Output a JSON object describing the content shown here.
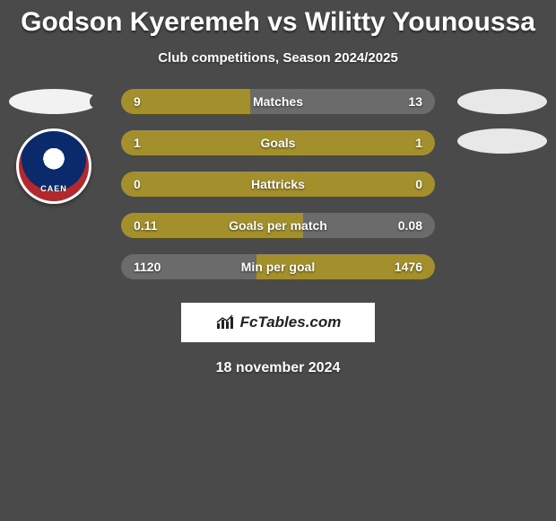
{
  "header": {
    "title": "Godson Kyeremeh vs Wilitty Younoussa",
    "subtitle": "Club competitions, Season 2024/2025"
  },
  "badge": {
    "label": "CAEN"
  },
  "colors": {
    "bar_fill": "#a38f2c",
    "bar_bg": "#6b6b6b",
    "page_bg": "#4a4a4a"
  },
  "stats": [
    {
      "label": "Matches",
      "left_val": "9",
      "right_val": "13",
      "left_pct": 41,
      "right_pct": 0
    },
    {
      "label": "Goals",
      "left_val": "1",
      "right_val": "1",
      "left_pct": 50,
      "right_pct": 50
    },
    {
      "label": "Hattricks",
      "left_val": "0",
      "right_val": "0",
      "left_pct": 100,
      "right_pct": 0
    },
    {
      "label": "Goals per match",
      "left_val": "0.11",
      "right_val": "0.08",
      "left_pct": 58,
      "right_pct": 0
    },
    {
      "label": "Min per goal",
      "left_val": "1120",
      "right_val": "1476",
      "left_pct": 0,
      "right_pct": 57
    }
  ],
  "brand": {
    "text": "FcTables.com"
  },
  "footer": {
    "date": "18 november 2024"
  }
}
